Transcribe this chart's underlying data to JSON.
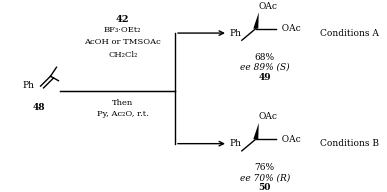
{
  "bg_color": "#ffffff",
  "conditions_a": "Conditions A",
  "conditions_b": "Conditions B",
  "compound_42": "42",
  "reagents_line1": "BF₃·OEt₂",
  "reagents_line2": "AcOH or TMSOAc",
  "reagents_line3": "CH₂Cl₂",
  "reagents_then": "Then",
  "reagents_line4": "Py, Ac₂O, r.t.",
  "yield_a": "68%",
  "ee_a": "ee 89% (S)",
  "compound_49": "49",
  "yield_b": "76%",
  "ee_b": "ee 70% (R)",
  "compound_50": "50",
  "compound_48": "48",
  "font_size_main": 6.5,
  "font_size_bold": 6.5
}
